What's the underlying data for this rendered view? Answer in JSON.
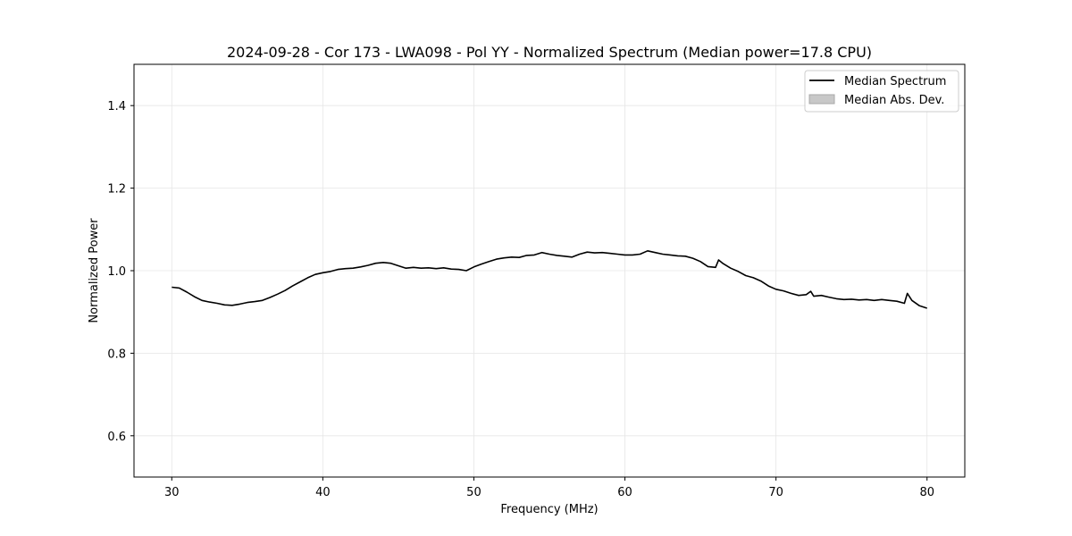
{
  "chart_data": {
    "type": "line",
    "title": "2024-09-28 - Cor 173 - LWA098 - Pol YY - Normalized Spectrum (Median power=17.8 CPU)",
    "xlabel": "Frequency (MHz)",
    "ylabel": "Normalized Power",
    "xlim": [
      27.5,
      82.5
    ],
    "ylim": [
      0.5,
      1.5
    ],
    "xticks": [
      30,
      40,
      50,
      60,
      70,
      80
    ],
    "yticks": [
      0.6,
      0.8,
      1.0,
      1.2,
      1.4
    ],
    "xtick_labels": [
      "30",
      "40",
      "50",
      "60",
      "70",
      "80"
    ],
    "ytick_labels": [
      "0.6",
      "0.8",
      "1.0",
      "1.2",
      "1.4"
    ],
    "grid": true,
    "legend_position": "top-right",
    "legend": [
      {
        "label": "Median Spectrum",
        "kind": "line",
        "color": "#000000"
      },
      {
        "label": "Median Abs. Dev.",
        "kind": "band",
        "color": "#c8c8c8"
      }
    ],
    "series": [
      {
        "name": "Median Spectrum",
        "color": "#000000",
        "x": [
          30.0,
          30.5,
          31.0,
          31.5,
          32.0,
          32.5,
          33.0,
          33.5,
          34.0,
          34.5,
          35.0,
          35.5,
          36.0,
          36.5,
          37.0,
          37.5,
          38.0,
          38.5,
          39.0,
          39.5,
          40.0,
          40.5,
          41.0,
          41.5,
          42.0,
          42.5,
          43.0,
          43.5,
          44.0,
          44.5,
          45.0,
          45.5,
          46.0,
          46.5,
          47.0,
          47.5,
          48.0,
          48.5,
          49.0,
          49.5,
          50.0,
          50.5,
          51.0,
          51.5,
          52.0,
          52.5,
          53.0,
          53.5,
          54.0,
          54.5,
          55.0,
          55.5,
          56.0,
          56.5,
          57.0,
          57.5,
          58.0,
          58.5,
          59.0,
          59.5,
          60.0,
          60.5,
          61.0,
          61.5,
          62.0,
          62.5,
          63.0,
          63.5,
          64.0,
          64.5,
          65.0,
          65.5,
          66.0,
          66.2,
          66.5,
          67.0,
          67.5,
          68.0,
          68.5,
          69.0,
          69.5,
          70.0,
          70.5,
          71.0,
          71.5,
          72.0,
          72.3,
          72.5,
          73.0,
          73.5,
          74.0,
          74.5,
          75.0,
          75.5,
          76.0,
          76.5,
          77.0,
          77.5,
          78.0,
          78.5,
          78.7,
          79.0,
          79.5,
          80.0
        ],
        "y": [
          0.96,
          0.958,
          0.948,
          0.937,
          0.928,
          0.924,
          0.921,
          0.917,
          0.916,
          0.919,
          0.923,
          0.925,
          0.928,
          0.935,
          0.943,
          0.952,
          0.963,
          0.973,
          0.983,
          0.991,
          0.995,
          0.998,
          1.003,
          1.005,
          1.006,
          1.009,
          1.013,
          1.018,
          1.02,
          1.018,
          1.012,
          1.006,
          1.008,
          1.006,
          1.007,
          1.005,
          1.007,
          1.004,
          1.003,
          1.0,
          1.009,
          1.016,
          1.022,
          1.028,
          1.031,
          1.033,
          1.032,
          1.037,
          1.038,
          1.044,
          1.04,
          1.037,
          1.035,
          1.033,
          1.04,
          1.045,
          1.043,
          1.044,
          1.042,
          1.04,
          1.038,
          1.038,
          1.04,
          1.048,
          1.044,
          1.04,
          1.038,
          1.036,
          1.035,
          1.03,
          1.022,
          1.01,
          1.008,
          1.026,
          1.017,
          1.006,
          0.998,
          0.988,
          0.983,
          0.975,
          0.963,
          0.955,
          0.951,
          0.945,
          0.94,
          0.942,
          0.95,
          0.938,
          0.94,
          0.936,
          0.932,
          0.93,
          0.931,
          0.929,
          0.93,
          0.928,
          0.93,
          0.928,
          0.926,
          0.921,
          0.945,
          0.928,
          0.915,
          0.909
        ]
      }
    ]
  }
}
